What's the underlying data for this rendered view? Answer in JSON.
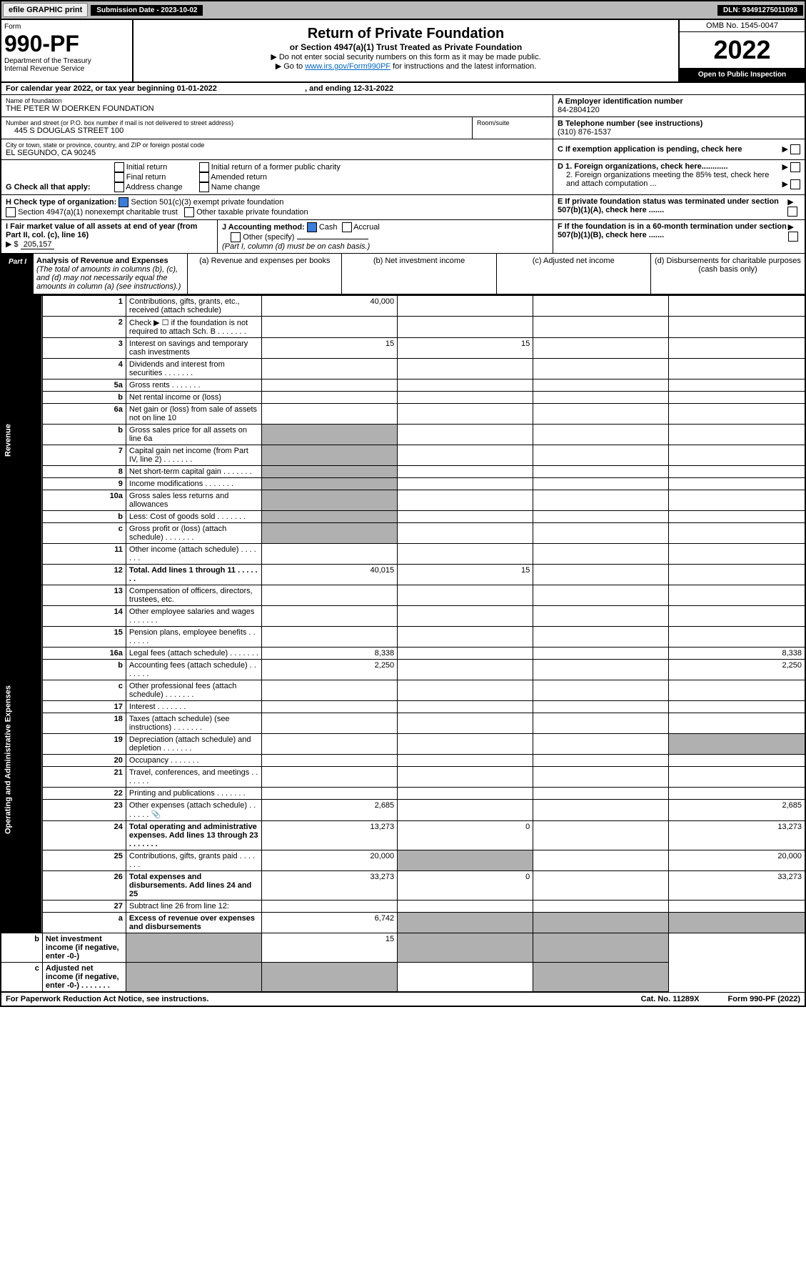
{
  "topbar": {
    "efile": "efile GRAPHIC print",
    "subdate_lbl": "Submission Date - 2023-10-02",
    "dln": "DLN: 93491275011093"
  },
  "head": {
    "form_word": "Form",
    "form_num": "990-PF",
    "dept": "Department of the Treasury",
    "irs": "Internal Revenue Service",
    "title": "Return of Private Foundation",
    "sub": "or Section 4947(a)(1) Trust Treated as Private Foundation",
    "inst1": "▶ Do not enter social security numbers on this form as it may be made public.",
    "inst2": "▶ Go to ",
    "inst2_link": "www.irs.gov/Form990PF",
    "inst2_b": " for instructions and the latest information.",
    "omb": "OMB No. 1545-0047",
    "year": "2022",
    "open": "Open to Public Inspection"
  },
  "cal": {
    "text": "For calendar year 2022, or tax year beginning 01-01-2022",
    "end": ", and ending 12-31-2022"
  },
  "name": {
    "lbl": "Name of foundation",
    "val": "THE PETER W DOERKEN FOUNDATION"
  },
  "ein": {
    "lbl": "A Employer identification number",
    "val": "84-2804120"
  },
  "addr": {
    "lbl": "Number and street (or P.O. box number if mail is not delivered to street address)",
    "val": "445 S DOUGLAS STREET 100",
    "room": "Room/suite"
  },
  "tel": {
    "lbl": "B Telephone number (see instructions)",
    "val": "(310) 876-1537"
  },
  "city": {
    "lbl": "City or town, state or province, country, and ZIP or foreign postal code",
    "val": "EL SEGUNDO, CA  90245"
  },
  "c": {
    "text": "C If exemption application is pending, check here"
  },
  "g": {
    "lbl": "G Check all that apply:",
    "opts": [
      "Initial return",
      "Final return",
      "Address change",
      "Initial return of a former public charity",
      "Amended return",
      "Name change"
    ]
  },
  "d": {
    "d1": "D 1. Foreign organizations, check here............",
    "d2": "2. Foreign organizations meeting the 85% test, check here and attach computation ..."
  },
  "h": {
    "lbl": "H Check type of organization:",
    "o1": "Section 501(c)(3) exempt private foundation",
    "o2": "Section 4947(a)(1) nonexempt charitable trust",
    "o3": "Other taxable private foundation"
  },
  "e": {
    "text": "E  If private foundation status was terminated under section 507(b)(1)(A), check here ......."
  },
  "i": {
    "lbl": "I Fair market value of all assets at end of year (from Part II, col. (c), line 16)",
    "val": "205,157",
    "pre": "▶ $"
  },
  "j": {
    "lbl": "J Accounting method:",
    "o1": "Cash",
    "o2": "Accrual",
    "o3": "Other (specify)",
    "note": "(Part I, column (d) must be on cash basis.)"
  },
  "f": {
    "text": "F  If the foundation is in a 60-month termination under section 507(b)(1)(B), check here ......."
  },
  "part1": {
    "lbl": "Part I",
    "title": "Analysis of Revenue and Expenses",
    "note": "(The total of amounts in columns (b), (c), and (d) may not necessarily equal the amounts in column (a) (see instructions).)",
    "cols": [
      "(a)  Revenue and expenses per books",
      "(b)  Net investment income",
      "(c)  Adjusted net income",
      "(d)  Disbursements for charitable purposes (cash basis only)"
    ]
  },
  "sides": {
    "rev": "Revenue",
    "exp": "Operating and Administrative Expenses"
  },
  "rows": [
    {
      "n": "1",
      "d": "Contributions, gifts, grants, etc., received (attach schedule)",
      "a": "40,000"
    },
    {
      "n": "2",
      "d": "Check ▶ ☐ if the foundation is not required to attach Sch. B",
      "dots": 1
    },
    {
      "n": "3",
      "d": "Interest on savings and temporary cash investments",
      "a": "15",
      "b": "15"
    },
    {
      "n": "4",
      "d": "Dividends and interest from securities",
      "dots": 1
    },
    {
      "n": "5a",
      "d": "Gross rents",
      "dots": 1
    },
    {
      "n": "b",
      "d": "Net rental income or (loss)",
      "inset": 1
    },
    {
      "n": "6a",
      "d": "Net gain or (loss) from sale of assets not on line 10"
    },
    {
      "n": "b",
      "d": "Gross sales price for all assets on line 6a",
      "inset": 1,
      "shadeA": 1
    },
    {
      "n": "7",
      "d": "Capital gain net income (from Part IV, line 2)",
      "dots": 1,
      "shadeA": 1
    },
    {
      "n": "8",
      "d": "Net short-term capital gain",
      "dots": 1,
      "shadeA": 1
    },
    {
      "n": "9",
      "d": "Income modifications",
      "dots": 1,
      "shadeA": 1
    },
    {
      "n": "10a",
      "d": "Gross sales less returns and allowances",
      "inset": 1,
      "shadeA": 1
    },
    {
      "n": "b",
      "d": "Less: Cost of goods sold",
      "dots": 1,
      "inset": 1,
      "shadeA": 1
    },
    {
      "n": "c",
      "d": "Gross profit or (loss) (attach schedule)",
      "dots": 1,
      "shadeA": 1
    },
    {
      "n": "11",
      "d": "Other income (attach schedule)",
      "dots": 1
    },
    {
      "n": "12",
      "d": "Total. Add lines 1 through 11",
      "dots": 1,
      "bold": 1,
      "a": "40,015",
      "b": "15"
    },
    {
      "n": "13",
      "d": "Compensation of officers, directors, trustees, etc."
    },
    {
      "n": "14",
      "d": "Other employee salaries and wages",
      "dots": 1
    },
    {
      "n": "15",
      "d": "Pension plans, employee benefits",
      "dots": 1
    },
    {
      "n": "16a",
      "d": "Legal fees (attach schedule)",
      "dots": 1,
      "a": "8,338",
      "dd": "8,338"
    },
    {
      "n": "b",
      "d": "Accounting fees (attach schedule)",
      "dots": 1,
      "a": "2,250",
      "dd": "2,250"
    },
    {
      "n": "c",
      "d": "Other professional fees (attach schedule)",
      "dots": 1
    },
    {
      "n": "17",
      "d": "Interest",
      "dots": 1
    },
    {
      "n": "18",
      "d": "Taxes (attach schedule) (see instructions)",
      "dots": 1
    },
    {
      "n": "19",
      "d": "Depreciation (attach schedule) and depletion",
      "dots": 1,
      "shadeD": 1
    },
    {
      "n": "20",
      "d": "Occupancy",
      "dots": 1
    },
    {
      "n": "21",
      "d": "Travel, conferences, and meetings",
      "dots": 1
    },
    {
      "n": "22",
      "d": "Printing and publications",
      "dots": 1
    },
    {
      "n": "23",
      "d": "Other expenses (attach schedule)",
      "dots": 1,
      "a": "2,685",
      "dd": "2,685",
      "icon": 1
    },
    {
      "n": "24",
      "d": "Total operating and administrative expenses. Add lines 13 through 23",
      "dots": 1,
      "bold": 1,
      "a": "13,273",
      "b": "0",
      "dd": "13,273"
    },
    {
      "n": "25",
      "d": "Contributions, gifts, grants paid",
      "dots": 1,
      "a": "20,000",
      "shadeB": 1,
      "dd": "20,000"
    },
    {
      "n": "26",
      "d": "Total expenses and disbursements. Add lines 24 and 25",
      "bold": 1,
      "a": "33,273",
      "b": "0",
      "dd": "33,273"
    },
    {
      "n": "27",
      "d": "Subtract line 26 from line 12:"
    },
    {
      "n": "a",
      "d": "Excess of revenue over expenses and disbursements",
      "bold": 1,
      "a": "6,742",
      "shadeB": 1,
      "shadeC": 1,
      "shadeD": 1
    },
    {
      "n": "b",
      "d": "Net investment income (if negative, enter -0-)",
      "bold": 1,
      "shadeA": 1,
      "b": "15",
      "shadeC": 1,
      "shadeD": 1
    },
    {
      "n": "c",
      "d": "Adjusted net income (if negative, enter -0-)",
      "dots": 1,
      "bold": 1,
      "shadeA": 1,
      "shadeB": 1,
      "shadeD": 1
    }
  ],
  "bottom": {
    "l": "For Paperwork Reduction Act Notice, see instructions.",
    "m": "Cat. No. 11289X",
    "r": "Form 990-PF (2022)"
  }
}
